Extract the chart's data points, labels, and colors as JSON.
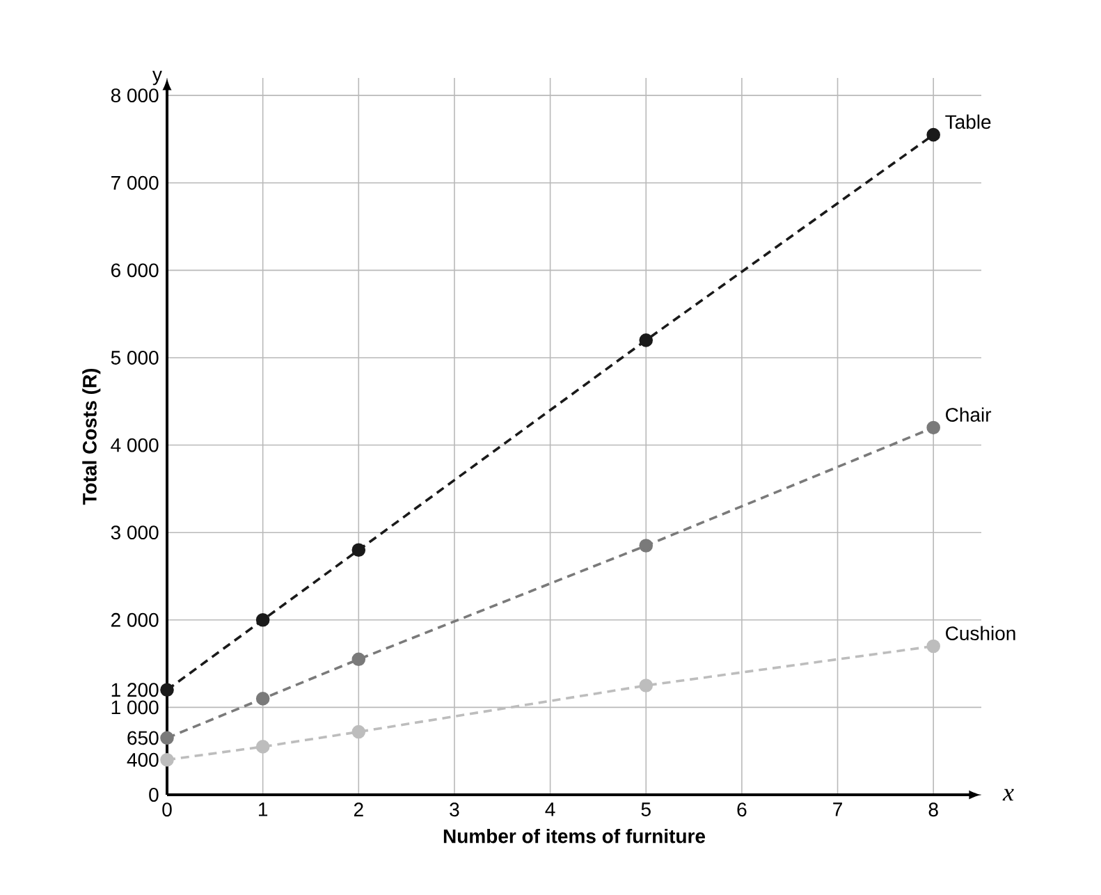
{
  "chart_data": {
    "type": "line",
    "xlabel": "Number of items of furniture",
    "ylabel": "Total Costs (R)",
    "annotations": [
      "y",
      "x"
    ],
    "x": [
      0,
      1,
      2,
      5,
      8
    ],
    "series": [
      {
        "name": "Table",
        "color": "#1a1a1a",
        "values": [
          1200,
          2000,
          2800,
          5200,
          7550
        ]
      },
      {
        "name": "Chair",
        "color": "#7a7a7a",
        "values": [
          650,
          1100,
          1550,
          2850,
          4200
        ]
      },
      {
        "name": "Cushion",
        "color": "#bdbdbd",
        "values": [
          400,
          550,
          720,
          1250,
          1700
        ]
      }
    ],
    "xlim": [
      0,
      8.5
    ],
    "ylim": [
      0,
      8200
    ],
    "xticks": [
      0,
      1,
      2,
      3,
      4,
      5,
      6,
      7,
      8
    ],
    "yticks": [
      0,
      {
        "value": 400,
        "label": "400"
      },
      {
        "value": 650,
        "label": "650"
      },
      {
        "value": 1000,
        "label": "1 000"
      },
      {
        "value": 1200,
        "label": "1 200"
      },
      {
        "value": 2000,
        "label": "2 000"
      },
      {
        "value": 3000,
        "label": "3 000"
      },
      {
        "value": 4000,
        "label": "4 000"
      },
      {
        "value": 5000,
        "label": "5 000"
      },
      {
        "value": 6000,
        "label": "6 000"
      },
      {
        "value": 7000,
        "label": "7 000"
      },
      {
        "value": 8000,
        "label": "8 000"
      }
    ],
    "grid": true,
    "marker": "circle",
    "line_style": "dashed"
  }
}
